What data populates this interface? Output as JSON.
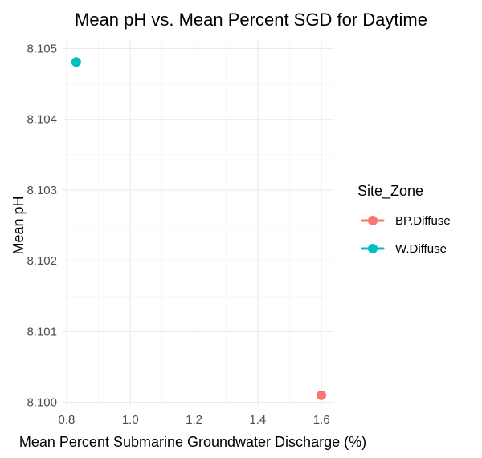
{
  "chart_data": {
    "type": "scatter",
    "title": "Mean pH vs. Mean Percent SGD for Daytime",
    "xlabel": "Mean Percent Submarine Groundwater Discharge (%)",
    "ylabel": "Mean pH",
    "xlim": [
      0.79,
      1.64
    ],
    "ylim": [
      8.09995,
      8.10513
    ],
    "x_ticks": [
      0.8,
      1.0,
      1.2,
      1.4,
      1.6
    ],
    "x_tick_labels": [
      "0.8",
      "1.0",
      "1.2",
      "1.4",
      "1.6"
    ],
    "y_ticks": [
      8.1,
      8.101,
      8.102,
      8.103,
      8.104,
      8.105
    ],
    "y_tick_labels": [
      "8.100",
      "8.101",
      "8.102",
      "8.103",
      "8.104",
      "8.105"
    ],
    "grid": true,
    "legend": {
      "title": "Site_Zone",
      "placement": "right"
    },
    "series": [
      {
        "name": "BP.Diffuse",
        "color": "#F8766D",
        "x": [
          1.6
        ],
        "y": [
          8.1001
        ]
      },
      {
        "name": "W.Diffuse",
        "color": "#00BFC4",
        "x": [
          0.83
        ],
        "y": [
          8.10481
        ]
      }
    ]
  }
}
